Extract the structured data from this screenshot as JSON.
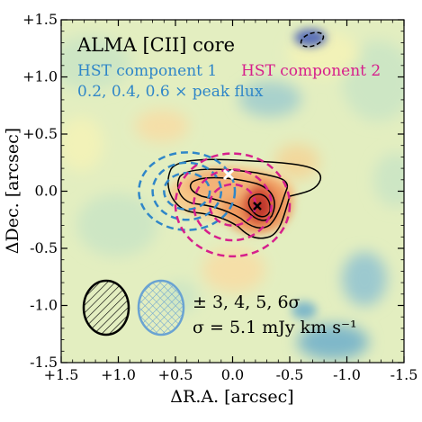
{
  "chart_data": {
    "type": "heatmap",
    "title": "ALMA [CII] core",
    "xlabel": "ΔR.A. [arcsec]",
    "ylabel": "ΔDec. [arcsec]",
    "xlim": [
      1.5,
      -1.5
    ],
    "ylim": [
      -1.5,
      1.5
    ],
    "xticks": [
      1.5,
      1.0,
      0.5,
      0.0,
      -0.5,
      -1.0,
      -1.5
    ],
    "xtick_labels": [
      "+1.5",
      "+1.0",
      "+0.5",
      "0.0",
      "-0.5",
      "-1.0",
      "-1.5"
    ],
    "yticks": [
      1.5,
      1.0,
      0.5,
      0.0,
      -0.5,
      -1.0,
      -1.5
    ],
    "ytick_labels": [
      "+1.5",
      "+1.0",
      "+0.5",
      "0.0",
      "-0.5",
      "-1.0",
      "-1.5"
    ],
    "colormap": [
      "#2c6fb2",
      "#7fb8c9",
      "#cde6c4",
      "#f2f2b8",
      "#f7c98a",
      "#e8784a",
      "#b8302a"
    ],
    "legend": {
      "hst1_label": "HST component 1",
      "hst1_color": "#2f86c8",
      "hst2_label": "HST component 2",
      "hst2_color": "#d61f8c",
      "hst_levels_label": "0.2, 0.4, 0.6 × peak flux",
      "contour_levels_label": "± 3, 4, 5, 6σ",
      "sigma_label": "σ = 5.1 mJy km s⁻¹"
    },
    "contour_levels_sigma": [
      3,
      4,
      5,
      6
    ],
    "sigma_mjy_km_s": 5.1,
    "hst_components": [
      {
        "name": "HST component 1",
        "center": [
          0.4,
          0.0
        ],
        "radii": [
          [
            0.42,
            0.34
          ],
          [
            0.3,
            0.25
          ],
          [
            0.2,
            0.16
          ]
        ]
      },
      {
        "name": "HST component 2",
        "center": [
          0.0,
          -0.12
        ],
        "radii": [
          [
            0.5,
            0.45
          ],
          [
            0.34,
            0.31
          ],
          [
            0.2,
            0.18
          ]
        ]
      }
    ],
    "markers": [
      {
        "label": "",
        "x": 0.0,
        "y": 0.09,
        "color": "#ffffff"
      },
      {
        "label": "",
        "x": -0.2,
        "y": -0.12,
        "color": "#000000"
      }
    ],
    "beams": [
      {
        "name": "ALMA beam",
        "center": [
          1.15,
          -1.1
        ],
        "radii": [
          0.2,
          0.25
        ],
        "color": "#000000"
      },
      {
        "name": "HST beam",
        "center": [
          0.67,
          -1.1
        ],
        "radii": [
          0.2,
          0.25
        ],
        "color": "#6aa3d2"
      }
    ]
  }
}
